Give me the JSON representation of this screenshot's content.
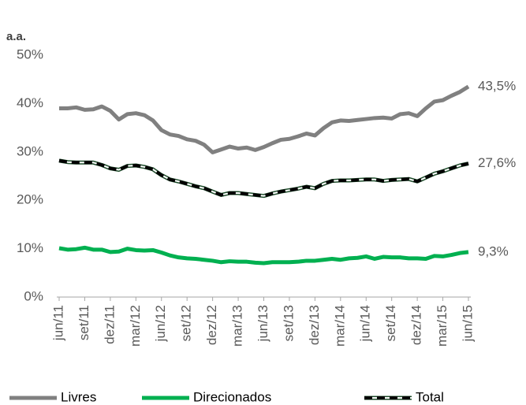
{
  "chart_data": {
    "type": "line",
    "ylabel": "a.a.",
    "categories": [
      "jun/11",
      null,
      null,
      "set/11",
      null,
      null,
      "dez/11",
      null,
      null,
      "mar/12",
      null,
      null,
      "jun/12",
      null,
      null,
      "set/12",
      null,
      null,
      "dez/12",
      null,
      null,
      "mar/13",
      null,
      null,
      "jun/13",
      null,
      null,
      "set/13",
      null,
      null,
      "dez/13",
      null,
      null,
      "mar/14",
      null,
      null,
      "jun/14",
      null,
      null,
      "set/14",
      null,
      null,
      "dez/14",
      null,
      null,
      "mar/15",
      null,
      null,
      "jun/15"
    ],
    "series": [
      {
        "name": "Livres",
        "color": "#808080",
        "dash": false,
        "values": [
          39.0,
          39.0,
          39.2,
          38.7,
          38.8,
          39.4,
          38.5,
          36.7,
          37.8,
          38.0,
          37.6,
          36.5,
          34.5,
          33.6,
          33.3,
          32.6,
          32.3,
          31.5,
          29.9,
          30.5,
          31.1,
          30.7,
          30.9,
          30.4,
          31.0,
          31.8,
          32.5,
          32.7,
          33.2,
          33.8,
          33.4,
          34.9,
          36.1,
          36.5,
          36.4,
          36.6,
          36.8,
          37.0,
          37.1,
          36.9,
          37.8,
          38.0,
          37.4,
          39.0,
          40.4,
          40.7,
          41.6,
          42.4,
          43.5
        ],
        "value_labels": [
          null,
          null,
          null,
          null,
          null,
          null,
          null,
          null,
          null,
          null,
          null,
          null,
          null,
          null,
          null,
          null,
          null,
          null,
          null,
          null,
          null,
          null,
          null,
          null,
          null,
          null,
          null,
          null,
          null,
          null,
          null,
          null,
          null,
          null,
          null,
          null,
          null,
          null,
          null,
          null,
          null,
          null,
          null,
          null,
          null,
          null,
          null,
          null,
          "43,5%"
        ]
      },
      {
        "name": "Direcionados",
        "color": "#00b050",
        "dash": false,
        "values": [
          10.1,
          9.8,
          9.9,
          10.2,
          9.8,
          9.8,
          9.3,
          9.4,
          10.0,
          9.7,
          9.6,
          9.7,
          9.2,
          8.6,
          8.2,
          8.0,
          7.9,
          7.7,
          7.5,
          7.2,
          7.4,
          7.3,
          7.3,
          7.1,
          7.0,
          7.2,
          7.2,
          7.2,
          7.3,
          7.5,
          7.5,
          7.7,
          7.9,
          7.7,
          8.0,
          8.1,
          8.4,
          7.9,
          8.3,
          8.2,
          8.2,
          8.0,
          8.0,
          7.9,
          8.5,
          8.4,
          8.7,
          9.1,
          9.3
        ],
        "value_labels": [
          null,
          null,
          null,
          null,
          null,
          null,
          null,
          null,
          null,
          null,
          null,
          null,
          null,
          null,
          null,
          null,
          null,
          null,
          null,
          null,
          null,
          null,
          null,
          null,
          null,
          null,
          null,
          null,
          null,
          null,
          null,
          null,
          null,
          null,
          null,
          null,
          null,
          null,
          null,
          null,
          null,
          null,
          null,
          null,
          null,
          null,
          null,
          null,
          "9,3%"
        ]
      },
      {
        "name": "Total",
        "color": "#000000",
        "dash": true,
        "values": [
          28.2,
          27.9,
          27.8,
          27.8,
          27.8,
          27.3,
          26.6,
          26.3,
          27.1,
          27.2,
          26.9,
          26.4,
          25.2,
          24.3,
          23.9,
          23.4,
          22.9,
          22.5,
          21.8,
          21.1,
          21.5,
          21.5,
          21.3,
          21.1,
          20.9,
          21.4,
          21.8,
          22.1,
          22.4,
          22.8,
          22.5,
          23.4,
          24.0,
          24.1,
          24.1,
          24.2,
          24.3,
          24.3,
          24.0,
          24.2,
          24.3,
          24.4,
          23.9,
          24.7,
          25.5,
          26.0,
          26.6,
          27.2,
          27.6
        ],
        "value_labels": [
          null,
          null,
          null,
          null,
          null,
          null,
          null,
          null,
          null,
          null,
          null,
          null,
          null,
          null,
          null,
          null,
          null,
          null,
          null,
          null,
          null,
          null,
          null,
          null,
          null,
          null,
          null,
          null,
          null,
          null,
          null,
          null,
          null,
          null,
          null,
          null,
          null,
          null,
          null,
          null,
          null,
          null,
          null,
          null,
          null,
          null,
          null,
          null,
          "27,6%"
        ]
      }
    ],
    "ylim": [
      0,
      50
    ],
    "yticks": [
      {
        "value": 0,
        "label": "0%"
      },
      {
        "value": 10,
        "label": "10%"
      },
      {
        "value": 20,
        "label": "20%"
      },
      {
        "value": 30,
        "label": "30%"
      },
      {
        "value": 40,
        "label": "40%"
      },
      {
        "value": 50,
        "label": "50%"
      }
    ],
    "grid": false,
    "legend": "bottom"
  }
}
